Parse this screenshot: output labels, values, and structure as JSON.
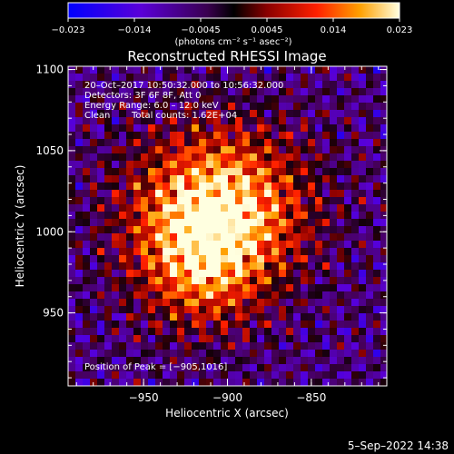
{
  "colorbar": {
    "ticks": [
      "−0.023",
      "−0.014",
      "−0.0045",
      "0.0045",
      "0.014",
      "0.023"
    ],
    "unit_label": "(photons cm⁻² s⁻¹ asec⁻²)"
  },
  "plot": {
    "title": "Reconstructed RHESSI Image",
    "xlabel": "Heliocentric X (arcsec)",
    "ylabel": "Heliocentric Y (arcsec)",
    "x_ticks": [
      "−950",
      "−900",
      "−850"
    ],
    "y_ticks": [
      "1100",
      "1050",
      "1000",
      "950"
    ],
    "x_range": [
      -995,
      -805
    ],
    "y_range": [
      905,
      1102
    ]
  },
  "annotations": {
    "line1": "20–Oct–2017 10:50:32.000 to 10:56:32.000",
    "line2": "Detectors: 3F 6F 8F, Att 0",
    "line3": "Energy Range: 6.0 – 12.0 keV",
    "line4_a": "Clean",
    "line4_b": "Total counts: 1.62E+04",
    "peak": "Position of Peak = [−905,1016]"
  },
  "timestamp": "5–Sep–2022 14:38",
  "chart_data": {
    "type": "heatmap",
    "title": "Reconstructed RHESSI Image",
    "xlabel": "Heliocentric X (arcsec)",
    "ylabel": "Heliocentric Y (arcsec)",
    "xlim": [
      -995,
      -805
    ],
    "ylim": [
      905,
      1102
    ],
    "zlim": [
      -0.023,
      0.023
    ],
    "peak": [
      -905,
      1016
    ],
    "colorscale": [
      "#0000ff",
      "#6a00d0",
      "#000000",
      "#8a0000",
      "#ff2a00",
      "#ffb000",
      "#ffffe0"
    ]
  }
}
